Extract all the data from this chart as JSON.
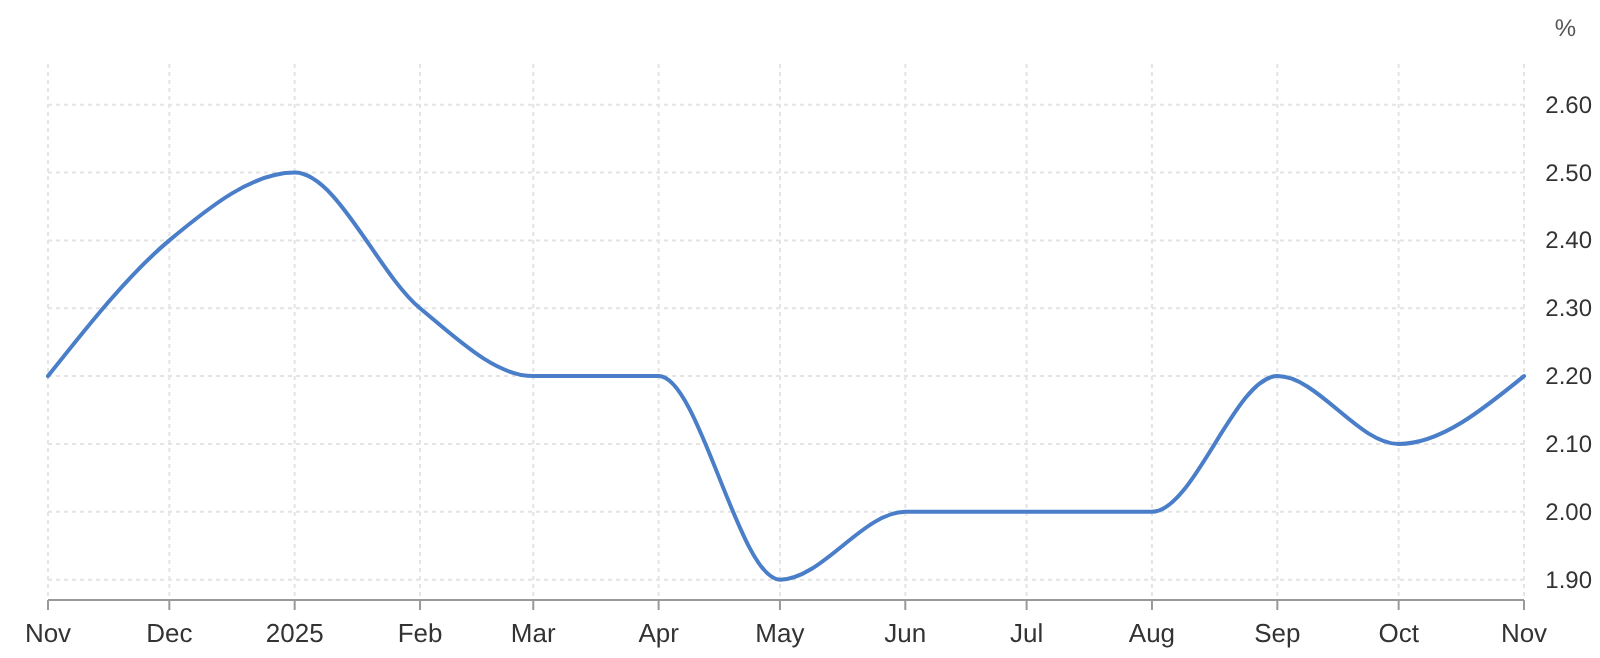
{
  "chart_data": {
    "type": "line",
    "ylabel": "%",
    "x": [
      "2024-11",
      "2024-12",
      "2025-01",
      "2025-02",
      "2025-03",
      "2025-04",
      "2025-05",
      "2025-06",
      "2025-07",
      "2025-08",
      "2025-09",
      "2025-10",
      "2025-11"
    ],
    "series": [
      {
        "color": "#4a7ec8",
        "values": [
          2.2,
          2.4,
          2.5,
          2.3,
          2.2,
          2.2,
          1.9,
          2.0,
          2.0,
          2.0,
          2.2,
          2.1,
          2.2
        ]
      }
    ],
    "xlim": [
      "2024-11",
      "2025-11"
    ],
    "xticks": [
      {
        "value": "2024-11",
        "label": "Nov"
      },
      {
        "value": "2024-12",
        "label": "Dec"
      },
      {
        "value": "2025-01",
        "label": "2025"
      },
      {
        "value": "2025-02",
        "label": "Feb"
      },
      {
        "value": "2025-03",
        "label": "Mar"
      },
      {
        "value": "2025-04",
        "label": "Apr"
      },
      {
        "value": "2025-05",
        "label": "May"
      },
      {
        "value": "2025-06",
        "label": "Jun"
      },
      {
        "value": "2025-07",
        "label": "Jul"
      },
      {
        "value": "2025-08",
        "label": "Aug"
      },
      {
        "value": "2025-09",
        "label": "Sep"
      },
      {
        "value": "2025-10",
        "label": "Oct"
      },
      {
        "value": "2025-11",
        "label": "Nov"
      }
    ],
    "ylim": [
      1.87,
      2.66
    ],
    "yticks": [
      {
        "value": 1.9,
        "label": "1.90"
      },
      {
        "value": 2.0,
        "label": "2.00"
      },
      {
        "value": 2.1,
        "label": "2.10"
      },
      {
        "value": 2.2,
        "label": "2.20"
      },
      {
        "value": 2.3,
        "label": "2.30"
      },
      {
        "value": 2.4,
        "label": "2.40"
      },
      {
        "value": 2.5,
        "label": "2.50"
      },
      {
        "value": 2.6,
        "label": "2.60"
      }
    ],
    "grid": true,
    "line_style": "solid",
    "marker": "none"
  }
}
